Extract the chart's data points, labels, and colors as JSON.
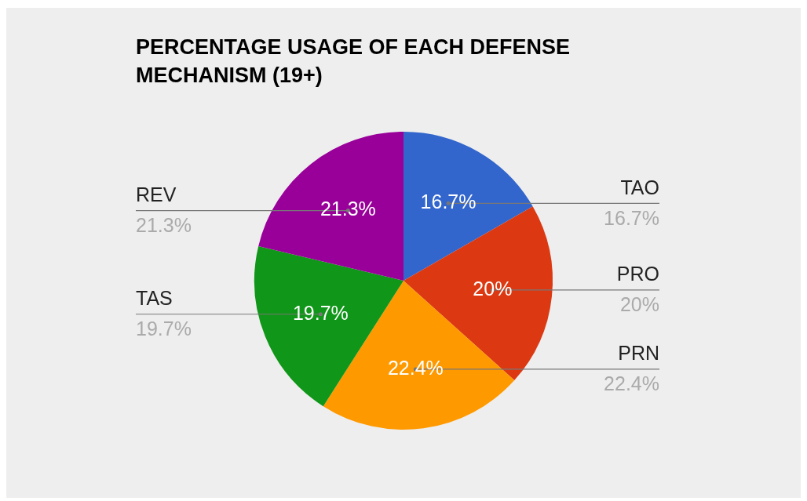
{
  "chart_data": {
    "type": "pie",
    "title": "PERCENTAGE USAGE OF EACH DEFENSE MECHANISM (19+)",
    "categories": [
      "TAO",
      "PRO",
      "PRN",
      "TAS",
      "REV"
    ],
    "values": [
      16.7,
      20,
      22.4,
      19.7,
      21.3
    ],
    "value_labels": [
      "16.7%",
      "20%",
      "22.4%",
      "19.7%",
      "21.3%"
    ],
    "colors": [
      "#3366cc",
      "#dc3912",
      "#ff9900",
      "#109618",
      "#990099"
    ]
  }
}
